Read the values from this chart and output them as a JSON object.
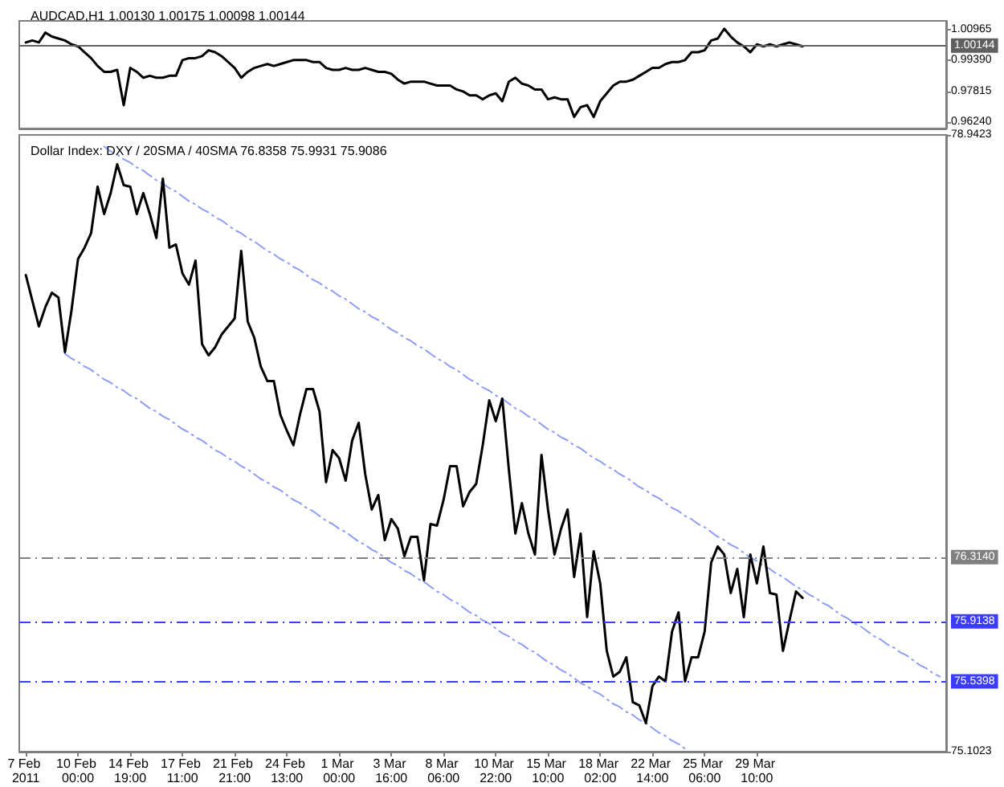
{
  "chart_data": [
    {
      "type": "line",
      "title": "AUDCAD,H1 1.00130 1.00175 1.00098 1.00144",
      "marker": "none",
      "tick_labels": "y",
      "ylim": [
        0.9591,
        1.014
      ],
      "yticks": [
        {
          "value": 0.9624,
          "label": "0.96240"
        },
        0.97815,
        {
          "value": 0.9939,
          "label": "0.99390"
        },
        1.00965
      ],
      "categories": [
        "7 Feb 2011",
        null,
        null,
        null,
        null,
        null,
        null,
        null,
        "10 Feb 00:00",
        null,
        null,
        null,
        null,
        null,
        null,
        null,
        "14 Feb 19:00",
        null,
        null,
        null,
        null,
        null,
        null,
        null,
        "17 Feb 11:00",
        null,
        null,
        null,
        null,
        null,
        null,
        null,
        "21 Feb 21:00",
        null,
        null,
        null,
        null,
        null,
        null,
        null,
        "24 Feb 13:00",
        null,
        null,
        null,
        null,
        null,
        null,
        null,
        "1 Mar 00:00",
        null,
        null,
        null,
        null,
        null,
        null,
        null,
        "3 Mar 16:00",
        null,
        null,
        null,
        null,
        null,
        null,
        null,
        "8 Mar 06:00",
        null,
        null,
        null,
        null,
        null,
        null,
        null,
        "10 Mar 22:00",
        null,
        null,
        null,
        null,
        null,
        null,
        null,
        "15 Mar 10:00",
        null,
        null,
        null,
        null,
        null,
        null,
        null,
        "18 Mar 02:00",
        null,
        null,
        null,
        null,
        null,
        null,
        null,
        "22 Mar 14:00",
        null,
        null,
        null,
        null,
        null,
        null,
        null,
        "25 Mar 06:00",
        null,
        null,
        null,
        null,
        null,
        null,
        null,
        "29 Mar 10:00",
        null,
        null,
        null,
        null,
        null,
        null,
        null,
        null,
        null,
        null,
        null,
        null,
        null,
        null,
        null,
        null,
        null,
        null,
        null,
        null,
        null,
        null,
        null,
        null,
        null,
        null,
        null,
        null
      ],
      "series": [
        {
          "color": "#000000",
          "values": [
            1.003,
            1.004,
            1.003,
            1.008,
            1.006,
            1.005,
            1.004,
            1.002,
            1.001,
            0.998,
            0.995,
            0.991,
            0.988,
            0.988,
            0.989,
            0.971,
            0.99,
            0.988,
            0.985,
            0.986,
            0.985,
            0.985,
            0.986,
            0.986,
            0.994,
            0.995,
            0.995,
            0.996,
            0.999,
            0.998,
            0.996,
            0.993,
            0.99,
            0.985,
            0.988,
            0.99,
            0.991,
            0.992,
            0.991,
            0.992,
            0.993,
            0.994,
            0.994,
            0.994,
            0.993,
            0.993,
            0.99,
            0.989,
            0.989,
            0.99,
            0.989,
            0.989,
            0.99,
            0.989,
            0.988,
            0.988,
            0.987,
            0.984,
            0.982,
            0.983,
            0.983,
            0.983,
            0.982,
            0.981,
            0.981,
            0.981,
            0.979,
            0.978,
            0.976,
            0.976,
            0.974,
            0.976,
            0.977,
            0.973,
            0.983,
            0.985,
            0.982,
            0.981,
            0.979,
            0.979,
            0.974,
            0.975,
            0.974,
            0.974,
            0.965,
            0.97,
            0.971,
            0.965,
            0.973,
            0.977,
            0.981,
            0.983,
            0.983,
            0.984,
            0.986,
            0.988,
            0.99,
            0.99,
            0.992,
            0.993,
            0.993,
            0.994,
            0.998,
            0.998,
            0.999,
            1.004,
            1.005,
            1.01,
            1.006,
            1.003,
            1.001,
            0.998,
            1.002,
            1.001,
            1.002,
            1.001,
            1.002,
            1.003,
            1.002,
            1.001,
            null,
            null,
            null,
            null,
            null,
            null,
            null,
            null,
            null,
            null,
            null,
            null,
            null,
            null,
            null,
            null,
            null,
            null,
            null,
            null,
            null
          ]
        }
      ],
      "ref_lines": [
        {
          "axis": "y",
          "value": 1.00144,
          "label": "1.00144",
          "color": "#606060"
        }
      ]
    },
    {
      "type": "line",
      "title": "Dollar Index: DXY / 20SMA / 40SMA 76.8358 75.9931 75.9086",
      "marker": "none",
      "ylim": [
        75.1023,
        78.9423
      ],
      "yticks": [
        75.1023,
        78.9423
      ],
      "categories": [
        "7 Feb 2011",
        null,
        null,
        null,
        null,
        null,
        null,
        null,
        "10 Feb 00:00",
        null,
        null,
        null,
        null,
        null,
        null,
        null,
        "14 Feb 19:00",
        null,
        null,
        null,
        null,
        null,
        null,
        null,
        "17 Feb 11:00",
        null,
        null,
        null,
        null,
        null,
        null,
        null,
        "21 Feb 21:00",
        null,
        null,
        null,
        null,
        null,
        null,
        null,
        "24 Feb 13:00",
        null,
        null,
        null,
        null,
        null,
        null,
        null,
        "1 Mar 00:00",
        null,
        null,
        null,
        null,
        null,
        null,
        null,
        "3 Mar 16:00",
        null,
        null,
        null,
        null,
        null,
        null,
        null,
        "8 Mar 06:00",
        null,
        null,
        null,
        null,
        null,
        null,
        null,
        "10 Mar 22:00",
        null,
        null,
        null,
        null,
        null,
        null,
        null,
        "15 Mar 10:00",
        null,
        null,
        null,
        null,
        null,
        null,
        null,
        "18 Mar 02:00",
        null,
        null,
        null,
        null,
        null,
        null,
        null,
        "22 Mar 14:00",
        null,
        null,
        null,
        null,
        null,
        null,
        null,
        "25 Mar 06:00",
        null,
        null,
        null,
        null,
        null,
        null,
        null,
        "29 Mar 10:00",
        null,
        null,
        null,
        null,
        null,
        null,
        null,
        null,
        null,
        null,
        null,
        null,
        null,
        null,
        null,
        null,
        null,
        null,
        null,
        null,
        null,
        null,
        null,
        null,
        null,
        null,
        null,
        null
      ],
      "series": [
        {
          "color": "#000000",
          "values": [
            78.07,
            77.91,
            77.75,
            77.87,
            77.96,
            77.93,
            77.59,
            77.85,
            78.17,
            78.24,
            78.33,
            78.62,
            78.45,
            78.58,
            78.76,
            78.63,
            78.62,
            78.45,
            78.58,
            78.45,
            78.3,
            78.67,
            78.24,
            78.26,
            78.08,
            78.01,
            78.16,
            77.64,
            77.57,
            77.62,
            77.7,
            77.75,
            77.8,
            78.22,
            77.78,
            77.68,
            77.5,
            77.41,
            77.41,
            77.2,
            77.1,
            77.01,
            77.2,
            77.36,
            77.36,
            77.22,
            76.78,
            76.98,
            76.93,
            76.79,
            77.04,
            77.15,
            76.83,
            76.61,
            76.7,
            76.42,
            76.55,
            76.49,
            76.32,
            76.44,
            76.44,
            76.17,
            76.52,
            76.51,
            76.67,
            76.88,
            76.88,
            76.63,
            76.72,
            76.77,
            77.01,
            77.29,
            77.16,
            77.3,
            76.86,
            76.46,
            76.65,
            76.46,
            76.33,
            76.95,
            76.61,
            76.33,
            76.49,
            76.61,
            76.19,
            76.46,
            75.94,
            76.35,
            76.15,
            75.73,
            75.57,
            75.6,
            75.69,
            75.41,
            75.39,
            75.28,
            75.51,
            75.57,
            75.54,
            75.85,
            75.97,
            75.54,
            75.69,
            75.69,
            75.85,
            76.28,
            76.38,
            76.33,
            76.09,
            76.24,
            75.94,
            76.33,
            76.15,
            76.38,
            76.09,
            76.08,
            75.73,
            75.92,
            76.1,
            76.06,
            null,
            null,
            null,
            null,
            null,
            null,
            null,
            null,
            null,
            null,
            null,
            null,
            null,
            null,
            null,
            null,
            null,
            null,
            null,
            null,
            null
          ]
        },
        {
          "type": "line",
          "color": "#8c9cf5",
          "line_style": "dashed",
          "values": [
            null,
            null,
            null,
            null,
            null,
            null,
            null,
            null,
            null,
            null,
            null,
            null,
            78.87,
            78.84,
            78.82,
            78.79,
            78.77,
            78.74,
            78.72,
            78.69,
            78.66,
            78.64,
            78.61,
            78.59,
            78.56,
            78.53,
            78.51,
            78.48,
            78.46,
            78.43,
            78.41,
            78.38,
            78.35,
            78.33,
            78.3,
            78.28,
            78.25,
            78.22,
            78.2,
            78.17,
            78.15,
            78.12,
            78.1,
            78.07,
            78.04,
            78.02,
            77.99,
            77.97,
            77.94,
            77.92,
            77.89,
            77.86,
            77.84,
            77.81,
            77.79,
            77.76,
            77.73,
            77.71,
            77.68,
            77.66,
            77.63,
            77.61,
            77.58,
            77.55,
            77.53,
            77.5,
            77.48,
            77.45,
            77.42,
            77.4,
            77.37,
            77.35,
            77.32,
            77.3,
            77.27,
            77.24,
            77.22,
            77.19,
            77.17,
            77.14,
            77.11,
            77.09,
            77.06,
            77.04,
            77.01,
            76.99,
            76.96,
            76.93,
            76.91,
            76.88,
            76.86,
            76.83,
            76.81,
            76.78,
            76.75,
            76.73,
            76.7,
            76.68,
            76.65,
            76.62,
            76.6,
            76.57,
            76.55,
            76.52,
            76.5,
            76.47,
            76.44,
            76.42,
            76.39,
            76.37,
            76.34,
            76.31,
            76.29,
            76.26,
            76.24,
            76.21,
            76.19,
            76.16,
            76.13,
            76.11,
            76.08,
            76.06,
            76.03,
            76.01,
            75.98,
            75.95,
            75.93,
            75.9,
            75.88,
            75.85,
            75.82,
            75.8,
            75.77,
            75.75,
            75.72,
            75.7,
            75.67,
            75.64,
            75.62,
            75.59,
            75.57
          ]
        },
        {
          "type": "line",
          "color": "#8c9cf5",
          "line_style": "dashed",
          "values": [
            null,
            null,
            null,
            null,
            null,
            null,
            77.58,
            77.55,
            77.53,
            77.5,
            77.48,
            77.45,
            77.42,
            77.4,
            77.37,
            77.35,
            77.32,
            77.3,
            77.27,
            77.24,
            77.22,
            77.19,
            77.17,
            77.14,
            77.11,
            77.09,
            77.06,
            77.04,
            77.01,
            76.98,
            76.96,
            76.93,
            76.91,
            76.88,
            76.86,
            76.83,
            76.8,
            76.78,
            76.75,
            76.73,
            76.7,
            76.67,
            76.65,
            76.62,
            76.6,
            76.57,
            76.54,
            76.52,
            76.49,
            76.47,
            76.44,
            76.41,
            76.39,
            76.36,
            76.34,
            76.31,
            76.28,
            76.26,
            76.23,
            76.21,
            76.18,
            76.16,
            76.13,
            76.1,
            76.08,
            76.05,
            76.03,
            76.0,
            75.97,
            75.95,
            75.92,
            75.9,
            75.87,
            75.84,
            75.82,
            75.79,
            75.77,
            75.74,
            75.72,
            75.69,
            75.66,
            75.64,
            75.61,
            75.59,
            75.56,
            75.53,
            75.51,
            75.48,
            75.46,
            75.43,
            75.4,
            75.38,
            75.35,
            75.33,
            75.3,
            75.28,
            75.25,
            75.22,
            75.2,
            75.17,
            75.15,
            75.12,
            null,
            null,
            null,
            null,
            null,
            null,
            null,
            null,
            null,
            null,
            null,
            null,
            null,
            null,
            null,
            null,
            null,
            null,
            null,
            null,
            null,
            null,
            null,
            null,
            null,
            null,
            null,
            null,
            null,
            null,
            null,
            null,
            null,
            null,
            null,
            null,
            null,
            null,
            null
          ]
        }
      ],
      "ref_lines": [
        {
          "axis": "y",
          "value": 76.314,
          "label": "76.3140",
          "color": "#808080",
          "line_style": "dashed"
        },
        {
          "axis": "y",
          "value": 75.9138,
          "label": "75.9138",
          "color": "#3c3cff",
          "line_style": "dashed"
        },
        {
          "axis": "y",
          "value": 75.5398,
          "label": "75.5398",
          "color": "#3c3cff",
          "line_style": "dashed"
        }
      ]
    }
  ]
}
